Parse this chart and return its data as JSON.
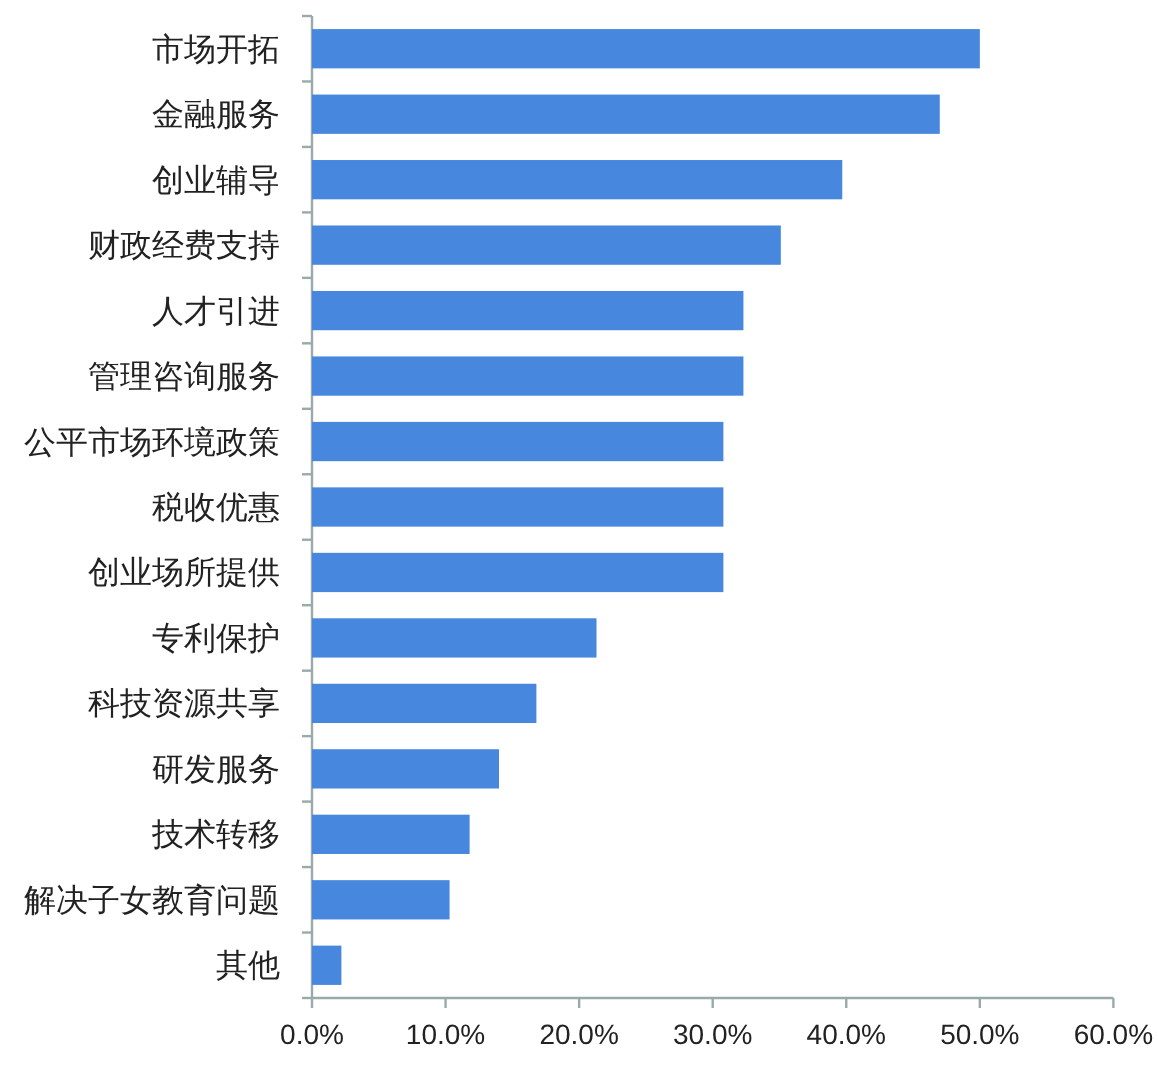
{
  "chart_data": {
    "type": "bar",
    "orientation": "horizontal",
    "categories": [
      "市场开拓",
      "金融服务",
      "创业辅导",
      "财政经费支持",
      "人才引进",
      "管理咨询服务",
      "公平市场环境政策",
      "税收优惠",
      "创业场所提供",
      "专利保护",
      "科技资源共享",
      "研发服务",
      "技术转移",
      "解决子女教育问题",
      "其他"
    ],
    "values": [
      50.0,
      47.0,
      39.7,
      35.1,
      32.3,
      32.3,
      30.8,
      30.8,
      30.8,
      21.3,
      16.8,
      14.0,
      11.8,
      10.3,
      2.2
    ],
    "color": "#4787dd",
    "xlim": [
      0,
      60
    ],
    "xticks": [
      {
        "value": 0,
        "label": "0.0%"
      },
      {
        "value": 10,
        "label": "10.0%"
      },
      {
        "value": 20,
        "label": "20.0%"
      },
      {
        "value": 30,
        "label": "30.0%"
      },
      {
        "value": 40,
        "label": "40.0%"
      },
      {
        "value": 50,
        "label": "50.0%"
      },
      {
        "value": 60,
        "label": "60.0%"
      }
    ]
  }
}
